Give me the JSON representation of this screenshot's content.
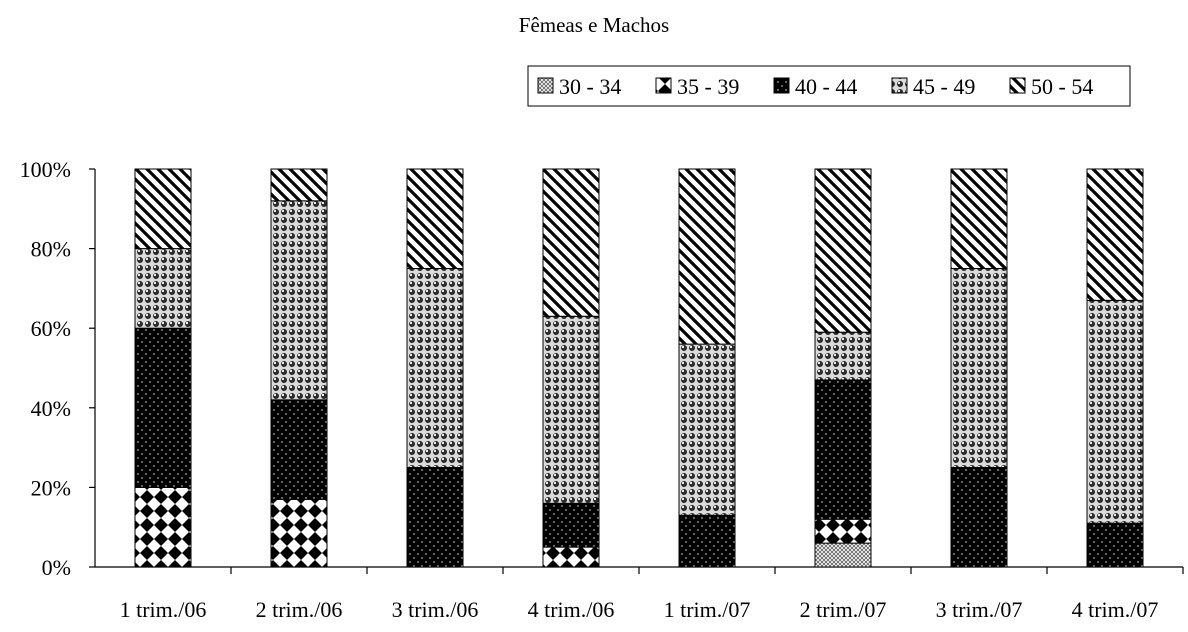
{
  "chart_data": {
    "type": "bar",
    "stacked": true,
    "normalized": true,
    "title": "Fêmeas e Machos",
    "xlabel": "",
    "ylabel": "",
    "ylim": [
      0,
      100
    ],
    "yticks": [
      "0%",
      "20%",
      "40%",
      "60%",
      "80%",
      "100%"
    ],
    "legend_position": "top-right",
    "categories": [
      "1 trim./06",
      "2 trim./06",
      "3 trim./06",
      "4 trim./06",
      "1 trim./07",
      "2 trim./07",
      "3 trim./07",
      "4 trim./07"
    ],
    "series": [
      {
        "name": "30 - 34",
        "pattern": "crosshatch",
        "values": [
          0,
          0,
          0,
          0,
          0,
          6,
          0,
          0
        ]
      },
      {
        "name": "35 - 39",
        "pattern": "diamonds",
        "values": [
          20,
          17,
          0,
          5,
          0,
          6,
          0,
          0
        ]
      },
      {
        "name": "40 - 44",
        "pattern": "dotted-black",
        "values": [
          40,
          25,
          25,
          11,
          13,
          35,
          25,
          11
        ]
      },
      {
        "name": "45 - 49",
        "pattern": "spheres",
        "values": [
          20,
          50,
          50,
          47,
          43,
          12,
          50,
          56
        ]
      },
      {
        "name": "50 - 54",
        "pattern": "diagonal-stripes",
        "values": [
          20,
          8,
          25,
          37,
          44,
          41,
          25,
          33
        ]
      }
    ]
  }
}
